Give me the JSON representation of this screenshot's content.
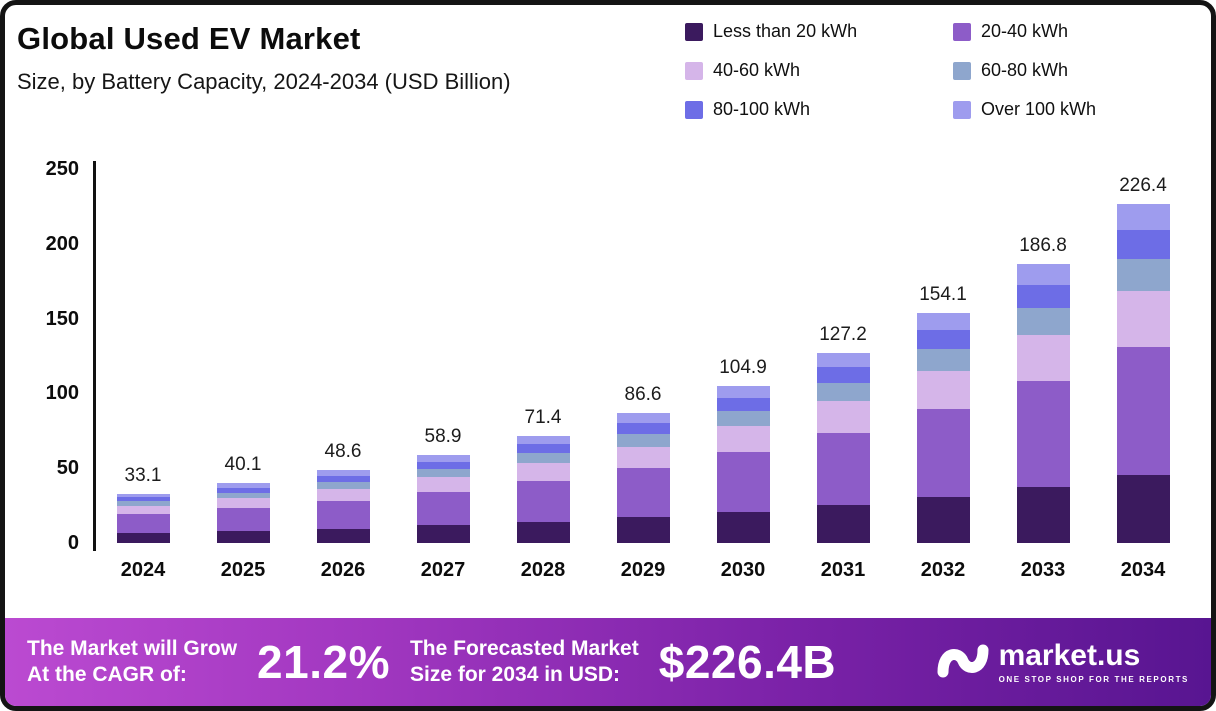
{
  "header": {
    "title": "Global Used EV Market",
    "subtitle": "Size, by Battery Capacity, 2024-2034 (USD Billion)"
  },
  "chart_data": {
    "type": "bar",
    "stacked": true,
    "title": "Global Used EV Market Size, by Battery Capacity, 2024-2034 (USD Billion)",
    "categories": [
      "2024",
      "2025",
      "2026",
      "2027",
      "2028",
      "2029",
      "2030",
      "2031",
      "2032",
      "2033",
      "2034"
    ],
    "series": [
      {
        "name": "Less than 20 kWh",
        "color": "#3b1a5e",
        "values": [
          6.6,
          8.0,
          9.7,
          11.8,
          14.3,
          17.3,
          21.0,
          25.4,
          30.8,
          37.4,
          45.3
        ]
      },
      {
        "name": "20-40 kWh",
        "color": "#8d5cc8",
        "values": [
          12.6,
          15.2,
          18.5,
          22.4,
          27.1,
          32.9,
          39.9,
          48.3,
          58.6,
          71.0,
          86.0
        ]
      },
      {
        "name": "40-60 kWh",
        "color": "#d5b5e9",
        "values": [
          5.5,
          6.6,
          8.0,
          9.7,
          11.8,
          14.3,
          17.3,
          21.0,
          25.4,
          30.8,
          37.4
        ]
      },
      {
        "name": "60-80 kWh",
        "color": "#8ea6cd",
        "values": [
          3.1,
          3.8,
          4.6,
          5.6,
          6.8,
          8.2,
          10.0,
          12.1,
          14.6,
          17.7,
          21.5
        ]
      },
      {
        "name": "80-100 kWh",
        "color": "#6d6de6",
        "values": [
          2.8,
          3.4,
          4.1,
          5.0,
          6.1,
          7.4,
          8.9,
          10.8,
          13.1,
          15.9,
          19.2
        ]
      },
      {
        "name": "Over 100 kWh",
        "color": "#9e9cee",
        "values": [
          2.5,
          3.1,
          3.7,
          4.4,
          5.3,
          6.5,
          7.8,
          9.6,
          11.6,
          14.0,
          17.0
        ]
      }
    ],
    "totals": [
      33.1,
      40.1,
      48.6,
      58.9,
      71.4,
      86.6,
      104.9,
      127.2,
      154.1,
      186.8,
      226.4
    ],
    "ylabel": "",
    "xlabel": "",
    "ylim": [
      0,
      250
    ],
    "yticks": [
      0,
      50,
      100,
      150,
      200,
      250
    ],
    "grid": false,
    "legend_position": "top-right"
  },
  "footer": {
    "cagr_label_line1": "The Market will Grow",
    "cagr_label_line2": "At the CAGR of:",
    "cagr_value": "21.2%",
    "forecast_label_line1": "The Forecasted Market",
    "forecast_label_line2": "Size for 2034 in USD:",
    "forecast_value": "$226.4B",
    "brand": "market.us",
    "brand_tagline": "ONE STOP SHOP FOR THE REPORTS"
  }
}
